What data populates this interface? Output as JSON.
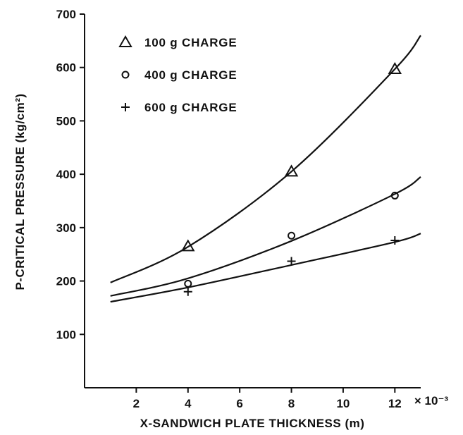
{
  "chart_data": {
    "type": "line",
    "title": "",
    "xlabel": "X-SANDWICH PLATE THICKNESS (m)",
    "ylabel": "P-CRITICAL PRESSURE (kg/cm²)",
    "x_multiplier": "× 10⁻³",
    "xlim": [
      0,
      13
    ],
    "ylim": [
      0,
      700
    ],
    "x_ticks": [
      2,
      4,
      6,
      8,
      10,
      12
    ],
    "y_ticks": [
      100,
      200,
      300,
      400,
      500,
      600,
      700
    ],
    "legend_position": "top-left",
    "series": [
      {
        "name": "100 g CHARGE",
        "marker": "triangle",
        "points": [
          {
            "x": 4,
            "y": 265
          },
          {
            "x": 8,
            "y": 405
          },
          {
            "x": 12,
            "y": 597
          }
        ],
        "fit_curve": [
          [
            1,
            197
          ],
          [
            4,
            264
          ],
          [
            8,
            405
          ],
          [
            12,
            597
          ],
          [
            13,
            660
          ]
        ]
      },
      {
        "name": "400 g CHARGE",
        "marker": "circle",
        "points": [
          {
            "x": 4,
            "y": 195
          },
          {
            "x": 8,
            "y": 285
          },
          {
            "x": 12,
            "y": 360
          }
        ],
        "fit_curve": [
          [
            1,
            172
          ],
          [
            4,
            205
          ],
          [
            8,
            275
          ],
          [
            12,
            363
          ],
          [
            13,
            395
          ]
        ]
      },
      {
        "name": "600 g CHARGE",
        "marker": "plus",
        "points": [
          {
            "x": 4,
            "y": 180
          },
          {
            "x": 8,
            "y": 237
          },
          {
            "x": 12,
            "y": 276
          }
        ],
        "fit_curve": [
          [
            1,
            161
          ],
          [
            4,
            188
          ],
          [
            8,
            230
          ],
          [
            12,
            273
          ],
          [
            13,
            289
          ]
        ]
      }
    ]
  }
}
